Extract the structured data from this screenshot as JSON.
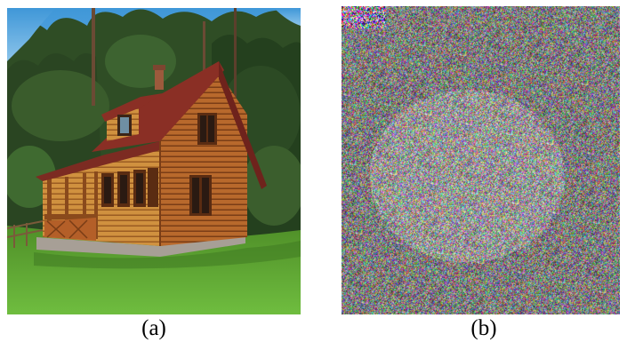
{
  "panels": [
    {
      "id": "a",
      "label": "(a)",
      "subject": "wooden-house-photo"
    },
    {
      "id": "b",
      "label": "(b)",
      "subject": "noise-image"
    }
  ],
  "colors": {
    "sky": "#4aa0dc",
    "grass": "#6ab43c",
    "trees": "#2e4a24",
    "wood": "#b8692c",
    "roof": "#8a2f25",
    "stone": "#a79f96",
    "noise_base": "#7d7774"
  }
}
